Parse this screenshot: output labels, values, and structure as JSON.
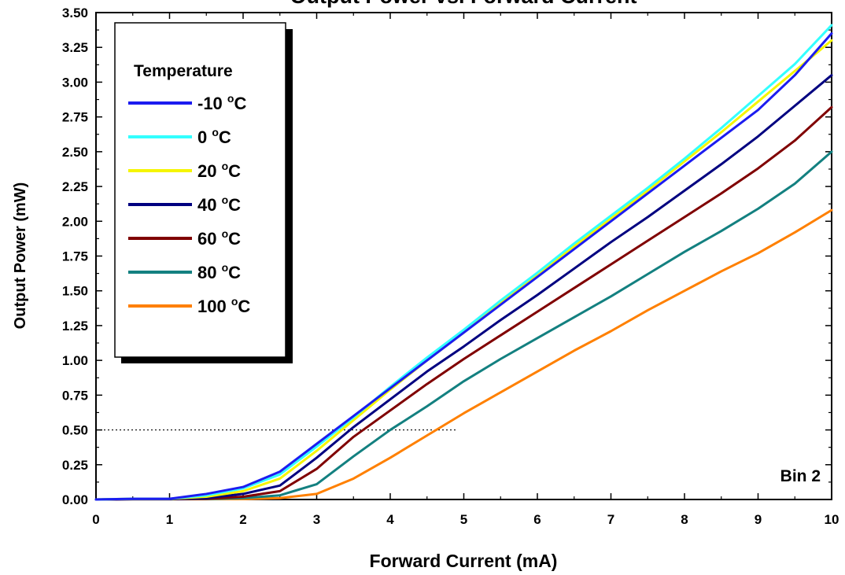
{
  "chart_data": {
    "type": "line",
    "title": "Output Power vs. Forward Current",
    "xlabel": "Forward Current (mA)",
    "ylabel": "Output Power (mW)",
    "xlim": [
      0,
      10
    ],
    "ylim": [
      0,
      3.5
    ],
    "x_ticks": [
      "0",
      "1",
      "2",
      "3",
      "4",
      "5",
      "6",
      "7",
      "8",
      "9",
      "10"
    ],
    "y_ticks": [
      "0.00",
      "0.25",
      "0.50",
      "0.75",
      "1.00",
      "1.25",
      "1.50",
      "1.75",
      "2.00",
      "2.25",
      "2.50",
      "2.75",
      "3.00",
      "3.25",
      "3.50"
    ],
    "grid": false,
    "legend": {
      "title": "Temperature",
      "placement": "top-left",
      "unit": "°C"
    },
    "annotation": "Bin 2",
    "reference_line": {
      "y": 0.5,
      "x_range": [
        0,
        4.9
      ],
      "style": "dotted"
    },
    "x": [
      0,
      0.5,
      1,
      1.5,
      2,
      2.5,
      3,
      3.5,
      4,
      4.5,
      5,
      5.5,
      6,
      6.5,
      7,
      7.5,
      8,
      8.5,
      9,
      9.5,
      10
    ],
    "series": [
      {
        "name": "-10",
        "color": "#1c1cf0",
        "values": [
          0,
          0.005,
          0.005,
          0.04,
          0.09,
          0.2,
          0.4,
          0.6,
          0.8,
          1.0,
          1.2,
          1.4,
          1.6,
          1.8,
          2.0,
          2.2,
          2.4,
          2.6,
          2.8,
          3.05,
          3.35
        ]
      },
      {
        "name": "0",
        "color": "#33ffff",
        "values": [
          0,
          0.005,
          0.005,
          0.03,
          0.08,
          0.18,
          0.38,
          0.59,
          0.81,
          1.02,
          1.22,
          1.43,
          1.63,
          1.84,
          2.04,
          2.24,
          2.45,
          2.67,
          2.9,
          3.13,
          3.41
        ]
      },
      {
        "name": "20",
        "color": "#f5f500",
        "values": [
          0,
          0.005,
          0.005,
          0.02,
          0.06,
          0.15,
          0.35,
          0.57,
          0.79,
          1.0,
          1.2,
          1.41,
          1.61,
          1.82,
          2.02,
          2.22,
          2.43,
          2.64,
          2.86,
          3.08,
          3.3
        ]
      },
      {
        "name": "40",
        "color": "#000080",
        "values": [
          0,
          0.003,
          0.003,
          0.01,
          0.04,
          0.1,
          0.3,
          0.52,
          0.72,
          0.92,
          1.1,
          1.29,
          1.47,
          1.66,
          1.85,
          2.03,
          2.22,
          2.41,
          2.61,
          2.83,
          3.05
        ]
      },
      {
        "name": "60",
        "color": "#800000",
        "values": [
          0,
          0.002,
          0.002,
          0.005,
          0.02,
          0.06,
          0.22,
          0.45,
          0.64,
          0.83,
          1.01,
          1.18,
          1.35,
          1.52,
          1.69,
          1.86,
          2.03,
          2.2,
          2.38,
          2.58,
          2.82
        ]
      },
      {
        "name": "80",
        "color": "#138080",
        "values": [
          0,
          0.002,
          0.002,
          0.003,
          0.01,
          0.03,
          0.11,
          0.31,
          0.5,
          0.67,
          0.85,
          1.01,
          1.16,
          1.31,
          1.46,
          1.62,
          1.78,
          1.93,
          2.09,
          2.27,
          2.5
        ]
      },
      {
        "name": "100",
        "color": "#ff8000",
        "values": [
          0,
          0.002,
          0.002,
          0.002,
          0.003,
          0.01,
          0.04,
          0.15,
          0.3,
          0.46,
          0.62,
          0.77,
          0.92,
          1.07,
          1.21,
          1.36,
          1.5,
          1.64,
          1.77,
          1.92,
          2.08
        ]
      }
    ]
  }
}
